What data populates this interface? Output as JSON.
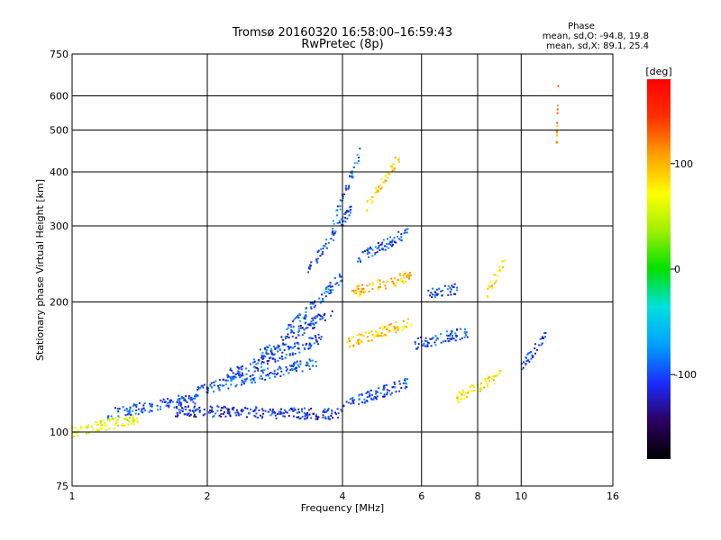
{
  "chart_data": {
    "type": "scatter",
    "title": "Tromsø 20160320 16:58:00–16:59:43",
    "subtitle": "RwPretec (8p)",
    "xlabel": "Frequency [MHz]",
    "ylabel": "Stationary phase Virtual Height [km]",
    "x_scale": "log",
    "y_scale": "log",
    "xlim": [
      1,
      16
    ],
    "ylim": [
      75,
      750
    ],
    "x_ticks": [
      1,
      2,
      4,
      6,
      8,
      10,
      16
    ],
    "x_tick_labels": [
      "1",
      "2",
      "4",
      "6",
      "8",
      "10",
      "16"
    ],
    "y_ticks": [
      75,
      100,
      200,
      300,
      400,
      500,
      600,
      750
    ],
    "y_tick_labels": [
      "75",
      "100",
      "200",
      "300",
      "400",
      "500",
      "600",
      "750"
    ],
    "grid": true,
    "phase_stats": {
      "heading": "Phase",
      "o_line": "mean, sd,O: -94.8, 19.8",
      "x_line": "mean, sd,X:  89.1, 25.4"
    },
    "colorbar": {
      "label": "[deg]",
      "range": [
        -180,
        180
      ],
      "ticks": [
        100,
        0,
        -100
      ],
      "tick_labels": [
        "100",
        "0",
        "-100"
      ],
      "colors": [
        "#000000",
        "#2a0060",
        "#1a2cff",
        "#00a0ff",
        "#00e0e0",
        "#00e000",
        "#9ef000",
        "#ffff00",
        "#ffa000",
        "#ff3000",
        "#ff0000"
      ]
    },
    "traces": [
      {
        "f_start": 1.2,
        "f_end": 1.9,
        "h_start": 110,
        "h_end": 120,
        "phase": -100
      },
      {
        "f_start": 1.7,
        "f_end": 4.0,
        "h_start": 112,
        "h_end": 110,
        "phase": -110
      },
      {
        "f_start": 1.9,
        "f_end": 3.5,
        "h_start": 125,
        "h_end": 145,
        "phase": -95
      },
      {
        "f_start": 2.2,
        "f_end": 3.6,
        "h_start": 135,
        "h_end": 165,
        "phase": -100
      },
      {
        "f_start": 2.6,
        "f_end": 3.8,
        "h_start": 150,
        "h_end": 190,
        "phase": -105
      },
      {
        "f_start": 3.0,
        "f_end": 4.0,
        "h_start": 170,
        "h_end": 230,
        "phase": -95
      },
      {
        "f_start": 3.3,
        "f_end": 4.2,
        "h_start": 230,
        "h_end": 330,
        "phase": -100
      },
      {
        "f_start": 3.8,
        "f_end": 4.4,
        "h_start": 300,
        "h_end": 450,
        "phase": -90
      },
      {
        "f_start": 4.0,
        "f_end": 5.6,
        "h_start": 115,
        "h_end": 130,
        "phase": -100
      },
      {
        "f_start": 4.1,
        "f_end": 5.7,
        "h_start": 160,
        "h_end": 180,
        "phase": 90
      },
      {
        "f_start": 4.2,
        "f_end": 5.7,
        "h_start": 210,
        "h_end": 230,
        "phase": 95
      },
      {
        "f_start": 4.3,
        "f_end": 5.6,
        "h_start": 250,
        "h_end": 290,
        "phase": -100
      },
      {
        "f_start": 4.5,
        "f_end": 5.4,
        "h_start": 330,
        "h_end": 440,
        "phase": 85
      },
      {
        "f_start": 5.8,
        "f_end": 7.6,
        "h_start": 160,
        "h_end": 170,
        "phase": -100
      },
      {
        "f_start": 6.2,
        "f_end": 7.2,
        "h_start": 210,
        "h_end": 215,
        "phase": -105
      },
      {
        "f_start": 7.2,
        "f_end": 9.0,
        "h_start": 120,
        "h_end": 135,
        "phase": 80
      },
      {
        "f_start": 8.4,
        "f_end": 9.2,
        "h_start": 210,
        "h_end": 250,
        "phase": 80
      },
      {
        "f_start": 10.0,
        "f_end": 11.4,
        "h_start": 140,
        "h_end": 170,
        "phase": -100
      },
      {
        "f_start": 1.0,
        "f_end": 1.4,
        "h_start": 100,
        "h_end": 108,
        "phase": 60
      },
      {
        "f_start": 12.0,
        "f_end": 12.1,
        "h_start": 470,
        "h_end": 620,
        "phase": 110
      }
    ]
  }
}
